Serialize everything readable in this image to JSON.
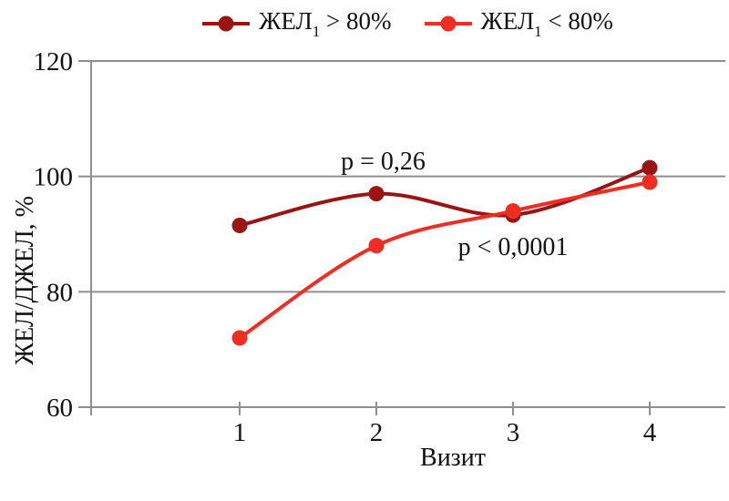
{
  "chart_data": {
    "type": "line",
    "title": "",
    "xlabel": "Визит",
    "ylabel": "ЖЕЛ/ДЖЕЛ, %",
    "x": [
      1,
      2,
      3,
      4
    ],
    "xticks": [
      1,
      2,
      3,
      4
    ],
    "yticks": [
      60,
      80,
      100,
      120
    ],
    "ylim": [
      60,
      120
    ],
    "grid": true,
    "legend_position": "top-center",
    "series": [
      {
        "name": "ЖЕЛ1 > 80%",
        "label_prefix": "ЖЕЛ",
        "label_sub": "1",
        "label_suffix": " > 80%",
        "color": "#9B1414",
        "values": [
          91.5,
          97,
          93.3,
          101.5
        ]
      },
      {
        "name": "ЖЕЛ1 < 80%",
        "label_prefix": "ЖЕЛ",
        "label_sub": "1",
        "label_suffix": " < 80%",
        "color": "#EE2D23",
        "values": [
          72,
          88,
          94,
          99
        ]
      }
    ],
    "annotations": [
      {
        "text": "p = 0,26",
        "x": 2.05,
        "y": 102.6
      },
      {
        "text": "p < 0,0001",
        "x": 3.0,
        "y": 87.8
      }
    ]
  },
  "colors": {
    "grid": "#8F8F8F",
    "axis": "#8F8F8F",
    "text": "#111111",
    "background": "#FFFFFF"
  }
}
